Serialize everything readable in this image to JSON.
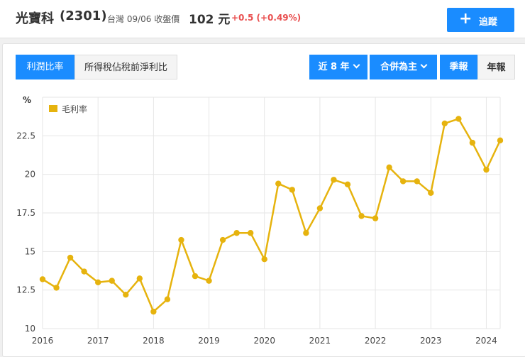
{
  "header": {
    "stock_name": "光寶科",
    "stock_code": "(2301)",
    "market_date": "台灣 09/06 收盤價",
    "close_price": "102 元",
    "price_change": "+0.5 (+0.49%)",
    "track_label": "追蹤",
    "track_icon": "plus-icon"
  },
  "tabs": [
    {
      "label": "利潤比率"
    },
    {
      "label": "所得稅佔稅前淨利比"
    }
  ],
  "controls": {
    "range": "近 8 年",
    "consolidation": "合併為主",
    "quarterly": "季報",
    "annual": "年報"
  },
  "colors": {
    "accent": "#1a8cff",
    "series": "#e6b30e",
    "positive": "#e94e4e"
  },
  "chart_data": {
    "type": "line",
    "unit_label": "%",
    "series": [
      {
        "name": "毛利率",
        "x": [
          "2016Q1",
          "2016Q2",
          "2016Q3",
          "2016Q4",
          "2017Q1",
          "2017Q2",
          "2017Q3",
          "2017Q4",
          "2018Q1",
          "2018Q2",
          "2018Q3",
          "2018Q4",
          "2019Q1",
          "2019Q2",
          "2019Q3",
          "2019Q4",
          "2020Q1",
          "2020Q2",
          "2020Q3",
          "2020Q4",
          "2021Q1",
          "2021Q2",
          "2021Q3",
          "2021Q4",
          "2022Q1",
          "2022Q2",
          "2022Q3",
          "2022Q4",
          "2023Q1",
          "2023Q2",
          "2023Q3",
          "2023Q4",
          "2024Q1",
          "2024Q2"
        ],
        "values": [
          13.2,
          12.65,
          14.6,
          13.7,
          13.0,
          13.1,
          12.2,
          13.25,
          11.1,
          11.9,
          15.75,
          13.4,
          13.1,
          15.75,
          16.2,
          16.2,
          14.5,
          19.4,
          19.0,
          16.2,
          17.8,
          19.65,
          19.35,
          17.3,
          17.15,
          20.45,
          19.55,
          19.55,
          18.8,
          23.3,
          23.6,
          22.05,
          20.3,
          22.2
        ]
      }
    ],
    "x_ticks": [
      "2016",
      "2017",
      "2018",
      "2019",
      "2020",
      "2021",
      "2022",
      "2023",
      "2024"
    ],
    "y_ticks": [
      "10",
      "12.5",
      "15",
      "17.5",
      "20",
      "22.5"
    ],
    "ylim": [
      10,
      25
    ],
    "grid": true,
    "legend_position": "top-left"
  }
}
